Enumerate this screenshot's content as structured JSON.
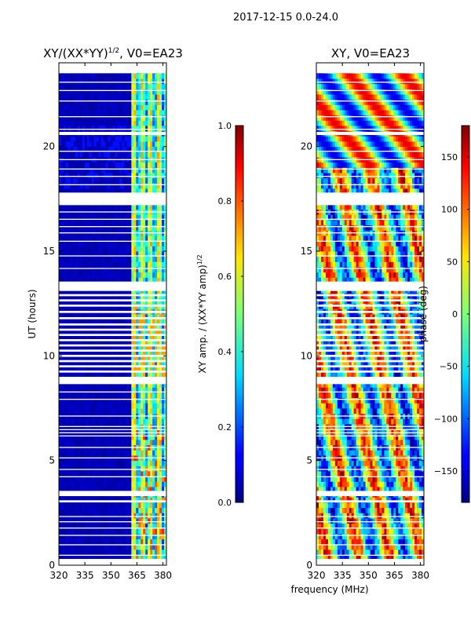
{
  "figure": {
    "suptitle": "2017-12-15 0.0-24.0",
    "xlabel_shared": "frequency (MHz)"
  },
  "chart_data": [
    {
      "type": "heatmap",
      "title_prefix": "XY/(XX*YY)",
      "title_exponent": "1/2",
      "title_suffix": ", V0=EA23",
      "xlabel": "",
      "ylabel": "UT (hours)",
      "xlim": [
        320,
        382
      ],
      "ylim": [
        0,
        24
      ],
      "xticks": [
        "320",
        "335",
        "350",
        "365",
        "380"
      ],
      "xtick_values": [
        320,
        335,
        350,
        365,
        380
      ],
      "yticks": [
        "0",
        "5",
        "10",
        "15",
        "20"
      ],
      "ytick_values": [
        0,
        5,
        10,
        15,
        20
      ],
      "colorbar": {
        "label_prefix": "XY amp. / (XX*YY amp)",
        "label_exponent": "1/2",
        "range": [
          0.0,
          1.0
        ],
        "ticks": [
          "0.0",
          "0.2",
          "0.4",
          "0.6",
          "0.8",
          "1.0"
        ],
        "tick_values": [
          0.0,
          0.2,
          0.4,
          0.6,
          0.8,
          1.0
        ],
        "colormap": "jet"
      }
    },
    {
      "type": "heatmap",
      "title": "XY, V0=EA23",
      "xlabel": "frequency (MHz)",
      "ylabel": "",
      "xlim": [
        320,
        382
      ],
      "ylim": [
        0,
        24
      ],
      "xticks": [
        "320",
        "335",
        "350",
        "365",
        "380"
      ],
      "xtick_values": [
        320,
        335,
        350,
        365,
        380
      ],
      "yticks": [
        "0",
        "5",
        "10",
        "15",
        "20"
      ],
      "ytick_values": [
        0,
        5,
        10,
        15,
        20
      ],
      "colorbar": {
        "label": "phase (deg)",
        "range": [
          -180,
          180
        ],
        "ticks": [
          "−150",
          "−100",
          "−50",
          "0",
          "50",
          "100",
          "150"
        ],
        "tick_values": [
          -150,
          -100,
          -50,
          0,
          50,
          100,
          150
        ],
        "colormap": "jet"
      }
    }
  ],
  "flagged_hours": [
    [
      0.0,
      0.3
    ],
    [
      0.45,
      0.5
    ],
    [
      0.95,
      1.0
    ],
    [
      1.4,
      1.45
    ],
    [
      1.75,
      1.8
    ],
    [
      2.05,
      2.1
    ],
    [
      2.3,
      2.35
    ],
    [
      3.0,
      3.1
    ],
    [
      3.3,
      3.55
    ],
    [
      4.2,
      4.25
    ],
    [
      4.55,
      4.6
    ],
    [
      5.1,
      5.15
    ],
    [
      5.6,
      5.65
    ],
    [
      6.15,
      6.2
    ],
    [
      6.3,
      6.35
    ],
    [
      6.45,
      6.5
    ],
    [
      6.6,
      6.65
    ],
    [
      7.1,
      7.15
    ],
    [
      7.9,
      7.95
    ],
    [
      8.25,
      8.3
    ],
    [
      8.65,
      9.0
    ],
    [
      9.2,
      9.3
    ],
    [
      9.45,
      9.55
    ],
    [
      9.7,
      9.8
    ],
    [
      9.95,
      10.05
    ],
    [
      10.2,
      10.3
    ],
    [
      10.45,
      10.55
    ],
    [
      10.7,
      10.8
    ],
    [
      10.95,
      11.05
    ],
    [
      11.2,
      11.3
    ],
    [
      11.45,
      11.55
    ],
    [
      11.75,
      11.85
    ],
    [
      12.05,
      12.15
    ],
    [
      12.35,
      12.45
    ],
    [
      12.6,
      12.7
    ],
    [
      12.85,
      12.95
    ],
    [
      13.1,
      13.55
    ],
    [
      14.15,
      14.2
    ],
    [
      14.75,
      14.8
    ],
    [
      15.45,
      15.5
    ],
    [
      15.85,
      15.9
    ],
    [
      16.15,
      16.2
    ],
    [
      16.5,
      16.55
    ],
    [
      16.85,
      16.9
    ],
    [
      17.2,
      17.8
    ],
    [
      18.15,
      18.2
    ],
    [
      18.55,
      18.6
    ],
    [
      18.9,
      18.95
    ],
    [
      19.35,
      19.4
    ],
    [
      19.75,
      19.8
    ],
    [
      20.55,
      20.7
    ],
    [
      20.8,
      20.85
    ],
    [
      21.4,
      21.45
    ],
    [
      22.15,
      22.2
    ],
    [
      22.65,
      22.7
    ],
    [
      23.05,
      23.1
    ],
    [
      23.5,
      24.0
    ]
  ]
}
